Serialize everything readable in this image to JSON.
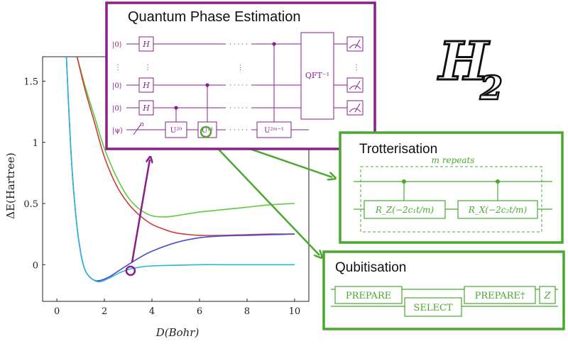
{
  "chart_data": {
    "type": "line",
    "xlabel": "D(Bohr)",
    "ylabel": "ΔE(Hartree)",
    "xlim": [
      -0.6,
      10.6
    ],
    "ylim": [
      -0.3,
      1.7
    ],
    "x_ticks": [
      "0",
      "2",
      "4",
      "6",
      "8",
      "10"
    ],
    "y_ticks": [
      "0",
      "0.5",
      "1",
      "1.5"
    ],
    "series": [
      {
        "color": "#5ecb3c",
        "x": [
          0.85,
          1.2,
          1.6,
          2.0,
          2.5,
          3.0,
          3.5,
          4.0,
          4.5,
          5.0,
          6.0,
          7.0,
          8.0,
          9.0,
          10.0
        ],
        "y": [
          1.7,
          1.45,
          1.2,
          0.95,
          0.72,
          0.55,
          0.45,
          0.4,
          0.39,
          0.4,
          0.43,
          0.45,
          0.47,
          0.49,
          0.5
        ]
      },
      {
        "color": "#d13a3a",
        "x": [
          0.85,
          1.2,
          1.6,
          2.0,
          2.5,
          3.0,
          3.5,
          4.0,
          4.5,
          5.0,
          6.0,
          7.0,
          8.0,
          9.0,
          10.0
        ],
        "y": [
          1.7,
          1.42,
          1.15,
          0.88,
          0.65,
          0.5,
          0.4,
          0.33,
          0.29,
          0.26,
          0.24,
          0.24,
          0.245,
          0.25,
          0.25
        ]
      },
      {
        "color": "#4a4ad0",
        "x": [
          0.4,
          0.6,
          0.8,
          1.0,
          1.2,
          1.5,
          1.8,
          2.2,
          2.6,
          3.0,
          3.5,
          4.0,
          5.0,
          6.0,
          7.0,
          8.0,
          9.0,
          10.0
        ],
        "y": [
          1.7,
          0.9,
          0.4,
          0.1,
          -0.05,
          -0.12,
          -0.13,
          -0.1,
          -0.05,
          0.0,
          0.06,
          0.11,
          0.18,
          0.22,
          0.235,
          0.24,
          0.245,
          0.25
        ]
      },
      {
        "color": "#2cb5d8",
        "x": [
          0.4,
          0.6,
          0.8,
          1.0,
          1.2,
          1.5,
          1.8,
          2.2,
          2.6,
          3.0,
          3.5,
          4.0,
          5.0,
          6.0,
          7.0,
          8.0,
          9.0,
          10.0
        ],
        "y": [
          1.7,
          0.9,
          0.4,
          0.1,
          -0.05,
          -0.12,
          -0.14,
          -0.11,
          -0.07,
          -0.04,
          -0.02,
          -0.01,
          -0.005,
          0.0,
          0.0,
          0.0,
          0.0,
          0.0
        ]
      }
    ],
    "marker": {
      "x": 3.1,
      "y": -0.05,
      "color": "#8a1f8a"
    }
  },
  "qpe": {
    "title": "Quantum Phase Estimation",
    "kets": [
      "|0⟩",
      "|0⟩",
      "|0⟩",
      "|ψ⟩"
    ],
    "h_label": "H",
    "n_label": "n",
    "u_labels": [
      "U²⁰",
      "U²¹",
      "U²ᵐ⁻¹"
    ],
    "qft_label": "QFT⁻¹",
    "ellipsis_h": "· · · · ·",
    "ellipsis_v": "⋮",
    "color": "#8a1f8a"
  },
  "trotter": {
    "title": "Trotterisation",
    "repeats": "m repeats",
    "gate1": "R_Z(−2c₁t/m)",
    "gate2": "R_X(−2c₂t/m)",
    "color": "#4aa82e"
  },
  "qubit": {
    "title": "Qubitisation",
    "prepare": "PREPARE",
    "select": "SELECT",
    "prepare_dag": "PREPARE†",
    "z": "Z",
    "color": "#4aa82e"
  },
  "molecule": {
    "letter": "H",
    "sub": "2"
  }
}
